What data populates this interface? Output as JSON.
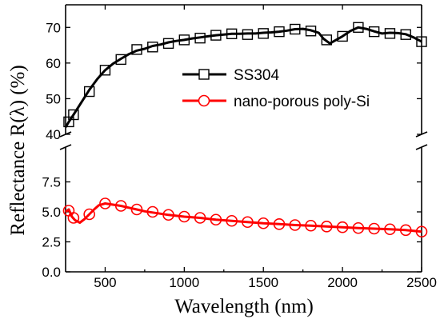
{
  "chart_data": {
    "type": "line",
    "xlabel": "Wavelength (nm)",
    "ylabel": "Reflectance R(λ) (%)",
    "xlim": [
      250,
      2500
    ],
    "x_ticks": [
      "500",
      "1000",
      "1500",
      "2000",
      "2500"
    ],
    "y_break": true,
    "upper_ylim": [
      40,
      75
    ],
    "upper_y_ticks": [
      "40",
      "50",
      "60",
      "70"
    ],
    "lower_ylim": [
      0,
      10
    ],
    "lower_y_ticks": [
      "0.0",
      "2.5",
      "5.0",
      "7.5"
    ],
    "legend_position": "center-right",
    "series": [
      {
        "name": "SS304",
        "color": "#000000",
        "marker": "square",
        "panel": "upper",
        "x": [
          250,
          270,
          300,
          350,
          400,
          450,
          500,
          550,
          600,
          650,
          700,
          750,
          800,
          850,
          900,
          950,
          1000,
          1050,
          1100,
          1150,
          1200,
          1250,
          1300,
          1350,
          1400,
          1450,
          1500,
          1550,
          1600,
          1650,
          1700,
          1750,
          1800,
          1850,
          1880,
          1920,
          1960,
          2000,
          2050,
          2100,
          2150,
          2200,
          2250,
          2300,
          2350,
          2400,
          2450,
          2500
        ],
        "y": [
          42.0,
          43.5,
          45.5,
          49.0,
          52.5,
          55.5,
          58.0,
          59.8,
          61.2,
          62.5,
          63.5,
          64.0,
          64.8,
          65.2,
          65.8,
          66.2,
          66.5,
          66.9,
          67.2,
          67.5,
          67.8,
          68.0,
          68.2,
          68.2,
          68.3,
          68.3,
          68.5,
          68.6,
          68.8,
          69.1,
          69.5,
          69.6,
          69.2,
          68.5,
          66.8,
          65.5,
          66.5,
          67.5,
          69.0,
          70.0,
          69.6,
          68.9,
          68.3,
          68.5,
          68.4,
          68.1,
          67.2,
          66.0
        ],
        "marker_x": [
          270,
          300,
          400,
          500,
          600,
          700,
          800,
          900,
          1000,
          1100,
          1200,
          1300,
          1400,
          1500,
          1600,
          1700,
          1800,
          1900,
          2000,
          2100,
          2200,
          2300,
          2400,
          2500
        ],
        "marker_y": [
          43.5,
          45.5,
          52.0,
          58.0,
          61.0,
          63.8,
          64.5,
          65.5,
          66.5,
          67.0,
          67.8,
          68.2,
          68.0,
          68.3,
          68.8,
          69.5,
          69.0,
          66.5,
          67.5,
          70.0,
          68.8,
          68.3,
          68.0,
          66.0
        ]
      },
      {
        "name": "nano-porous poly-Si",
        "color": "#ff0000",
        "marker": "circle",
        "panel": "lower",
        "x": [
          250,
          270,
          290,
          310,
          340,
          370,
          400,
          430,
          460,
          500,
          550,
          600,
          650,
          700,
          750,
          800,
          900,
          1000,
          1100,
          1200,
          1300,
          1400,
          1500,
          1600,
          1700,
          1800,
          1900,
          2000,
          2100,
          2200,
          2300,
          2400,
          2450,
          2500
        ],
        "y": [
          5.0,
          5.2,
          4.6,
          4.3,
          4.1,
          4.4,
          4.8,
          5.2,
          5.55,
          5.7,
          5.6,
          5.5,
          5.35,
          5.2,
          5.05,
          4.95,
          4.75,
          4.6,
          4.5,
          4.35,
          4.25,
          4.15,
          4.05,
          3.98,
          3.9,
          3.85,
          3.78,
          3.72,
          3.65,
          3.6,
          3.55,
          3.48,
          3.42,
          3.35
        ],
        "marker_x": [
          270,
          300,
          400,
          500,
          600,
          700,
          800,
          900,
          1000,
          1100,
          1200,
          1300,
          1400,
          1500,
          1600,
          1700,
          1800,
          1900,
          2000,
          2100,
          2200,
          2300,
          2400,
          2500
        ],
        "marker_y": [
          5.1,
          4.5,
          4.8,
          5.7,
          5.5,
          5.2,
          5.0,
          4.75,
          4.6,
          4.5,
          4.35,
          4.25,
          4.15,
          4.05,
          3.98,
          3.9,
          3.85,
          3.78,
          3.72,
          3.65,
          3.6,
          3.55,
          3.48,
          3.35
        ]
      }
    ]
  }
}
